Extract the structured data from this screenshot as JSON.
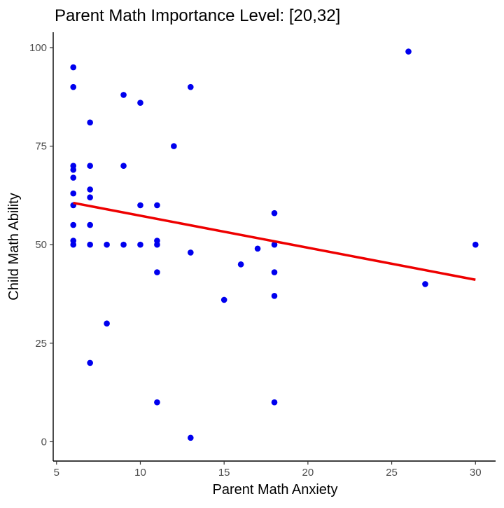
{
  "chart_data": {
    "type": "scatter",
    "title": "Parent Math Importance Level: [20,32]",
    "xlabel": "Parent Math Anxiety",
    "ylabel": "Child Math Ability",
    "xlim": [
      4.8,
      31.2
    ],
    "ylim": [
      -4.9,
      103.9
    ],
    "x_ticks": [
      5,
      10,
      15,
      20,
      25,
      30
    ],
    "x_tick_labels": [
      "5",
      "10",
      "15",
      "20",
      "25",
      "30"
    ],
    "y_ticks": [
      0,
      25,
      50,
      75,
      100
    ],
    "y_tick_labels": [
      "0",
      "25",
      "50",
      "75",
      "100"
    ],
    "grid": false,
    "legend": "none",
    "point_color": "#0000ee",
    "line_color": "#ee0000",
    "points": [
      {
        "x": 6,
        "y": 95
      },
      {
        "x": 6,
        "y": 90
      },
      {
        "x": 6,
        "y": 70
      },
      {
        "x": 6,
        "y": 69
      },
      {
        "x": 6,
        "y": 67
      },
      {
        "x": 6,
        "y": 63
      },
      {
        "x": 6,
        "y": 60
      },
      {
        "x": 6,
        "y": 55
      },
      {
        "x": 6,
        "y": 51
      },
      {
        "x": 6,
        "y": 50
      },
      {
        "x": 7,
        "y": 81
      },
      {
        "x": 7,
        "y": 70
      },
      {
        "x": 7,
        "y": 64
      },
      {
        "x": 7,
        "y": 62
      },
      {
        "x": 7,
        "y": 55
      },
      {
        "x": 7,
        "y": 50
      },
      {
        "x": 7,
        "y": 20
      },
      {
        "x": 8,
        "y": 50
      },
      {
        "x": 8,
        "y": 30
      },
      {
        "x": 9,
        "y": 88
      },
      {
        "x": 9,
        "y": 70
      },
      {
        "x": 9,
        "y": 50
      },
      {
        "x": 10,
        "y": 86
      },
      {
        "x": 10,
        "y": 60
      },
      {
        "x": 10,
        "y": 50
      },
      {
        "x": 11,
        "y": 60
      },
      {
        "x": 11,
        "y": 51
      },
      {
        "x": 11,
        "y": 50
      },
      {
        "x": 11,
        "y": 43
      },
      {
        "x": 11,
        "y": 10
      },
      {
        "x": 12,
        "y": 75
      },
      {
        "x": 13,
        "y": 90
      },
      {
        "x": 13,
        "y": 48
      },
      {
        "x": 13,
        "y": 1
      },
      {
        "x": 15,
        "y": 36
      },
      {
        "x": 16,
        "y": 45
      },
      {
        "x": 17,
        "y": 49
      },
      {
        "x": 18,
        "y": 58
      },
      {
        "x": 18,
        "y": 50
      },
      {
        "x": 18,
        "y": 43
      },
      {
        "x": 18,
        "y": 37
      },
      {
        "x": 18,
        "y": 10
      },
      {
        "x": 26,
        "y": 99
      },
      {
        "x": 27,
        "y": 40
      },
      {
        "x": 30,
        "y": 50
      }
    ],
    "fit_line": {
      "x": [
        6,
        30
      ],
      "y": [
        60.6,
        41.1
      ]
    }
  }
}
